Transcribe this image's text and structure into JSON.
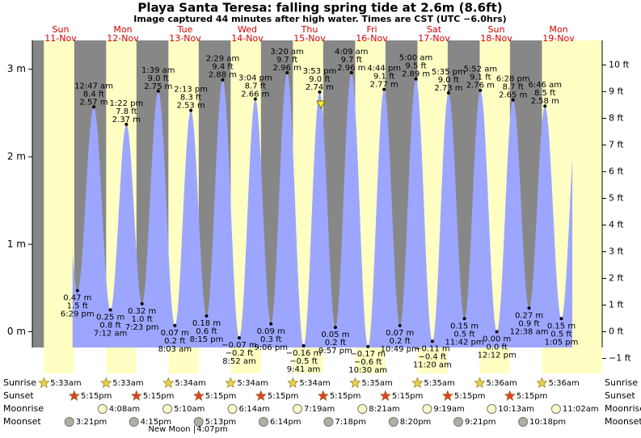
{
  "chart_data": {
    "type": "tide",
    "title": "Playa Santa Teresa: falling  spring tide at 2.6m (8.6ft)",
    "subtitle": "Image captured 44 minutes after high water. Times are CST (UTC −6.0hrs)",
    "ylim": [
      -0.18,
      3.33
    ],
    "yticks": [
      {
        "value": 0,
        "label": "0 m"
      },
      {
        "value": 1,
        "label": "1 m"
      },
      {
        "value": 2,
        "label": "2 m"
      },
      {
        "value": 3,
        "label": "3 m"
      }
    ],
    "y2lim": [
      -0.59,
      10.92
    ],
    "y2ticks": [
      {
        "value": -1,
        "label": "−1 ft"
      },
      {
        "value": 0,
        "label": "0 ft"
      },
      {
        "value": 1,
        "label": "1 ft"
      },
      {
        "value": 2,
        "label": "2 ft"
      },
      {
        "value": 3,
        "label": "3 ft"
      },
      {
        "value": 4,
        "label": "4 ft"
      },
      {
        "value": 5,
        "label": "5 ft"
      },
      {
        "value": 6,
        "label": "6 ft"
      },
      {
        "value": 7,
        "label": "7 ft"
      },
      {
        "value": 8,
        "label": "8 ft"
      },
      {
        "value": 9,
        "label": "9 ft"
      },
      {
        "value": 10,
        "label": "10 ft"
      }
    ],
    "row_labels": [
      "Sunrise",
      "Sunset",
      "Moonrise",
      "Moonset"
    ],
    "colors": {
      "water": "#9da6ff",
      "night": "#878787",
      "day": "#ffffc4",
      "weekday": "#d40000"
    },
    "days": [
      {
        "weekday": "Sun",
        "date": "11-Nov",
        "sunrise": "5:33am",
        "sunset": "5:15pm",
        "moonrise": null,
        "moonset": "3:21pm",
        "extremes": [
          {
            "time": "6:29 pm",
            "m": 0.47,
            "m_label": "0.47 m",
            "ft": 1.5,
            "ft_label": "1.5 ft"
          }
        ]
      },
      {
        "weekday": "Mon",
        "date": "12-Nov",
        "sunrise": "5:33am",
        "sunset": "5:15pm",
        "moonrise": "4:08am",
        "moonset": "4:15pm",
        "extremes": [
          {
            "time": "12:47 am",
            "m": 2.57,
            "m_label": "2.57 m",
            "ft": 8.4,
            "ft_label": "8.4 ft"
          },
          {
            "time": "7:12 am",
            "m": 0.25,
            "m_label": "0.25 m",
            "ft": 0.8,
            "ft_label": "0.8 ft"
          },
          {
            "time": "1:22 pm",
            "m": 2.37,
            "m_label": "2.37 m",
            "ft": 7.8,
            "ft_label": "7.8 ft"
          },
          {
            "time": "7:23 pm",
            "m": 0.32,
            "m_label": "0.32 m",
            "ft": 1.0,
            "ft_label": "1.0 ft"
          }
        ]
      },
      {
        "weekday": "Tue",
        "date": "13-Nov",
        "sunrise": "5:34am",
        "sunset": "5:15pm",
        "moonrise": "5:10am",
        "moonset": "5:13pm",
        "moon_phase": "New Moon |",
        "moon_phase_time": "4:07pm",
        "extremes": [
          {
            "time": "1:39 am",
            "m": 2.75,
            "m_label": "2.75 m",
            "ft": 9.0,
            "ft_label": "9.0 ft"
          },
          {
            "time": "8:03 am",
            "m": 0.07,
            "m_label": "0.07 m",
            "ft": 0.2,
            "ft_label": "0.2 ft"
          },
          {
            "time": "2:13 pm",
            "m": 2.53,
            "m_label": "2.53 m",
            "ft": 8.3,
            "ft_label": "8.3 ft"
          },
          {
            "time": "8:15 pm",
            "m": 0.18,
            "m_label": "0.18 m",
            "ft": 0.6,
            "ft_label": "0.6 ft"
          }
        ]
      },
      {
        "weekday": "Wed",
        "date": "14-Nov",
        "sunrise": "5:34am",
        "sunset": "5:15pm",
        "moonrise": "6:14am",
        "moonset": "6:14pm",
        "extremes": [
          {
            "time": "2:29 am",
            "m": 2.88,
            "m_label": "2.88 m",
            "ft": 9.4,
            "ft_label": "9.4 ft"
          },
          {
            "time": "8:52 am",
            "m": -0.07,
            "m_label": "−0.07 m",
            "ft": -0.2,
            "ft_label": "−0.2 ft"
          },
          {
            "time": "3:04 pm",
            "m": 2.66,
            "m_label": "2.66 m",
            "ft": 8.7,
            "ft_label": "8.7 ft"
          },
          {
            "time": "9:06 pm",
            "m": 0.09,
            "m_label": "0.09 m",
            "ft": 0.3,
            "ft_label": "0.3 ft"
          }
        ]
      },
      {
        "weekday": "Thu",
        "date": "15-Nov",
        "sunrise": "5:34am",
        "sunset": "5:15pm",
        "moonrise": "7:19am",
        "moonset": "7:18pm",
        "extremes": [
          {
            "time": "3:20 am",
            "m": 2.96,
            "m_label": "2.96 m",
            "ft": 9.7,
            "ft_label": "9.7 ft"
          },
          {
            "time": "9:41 am",
            "m": -0.16,
            "m_label": "−0.16 m",
            "ft": -0.5,
            "ft_label": "−0.5 ft"
          },
          {
            "time": "3:53 pm",
            "m": 2.74,
            "m_label": "2.74 m",
            "ft": 9.0,
            "ft_label": "9.0 ft"
          },
          {
            "time": "9:57 pm",
            "m": 0.05,
            "m_label": "0.05 m",
            "ft": 0.2,
            "ft_label": "0.2 ft"
          }
        ]
      },
      {
        "weekday": "Fri",
        "date": "16-Nov",
        "sunrise": "5:35am",
        "sunset": "5:15pm",
        "moonrise": "8:21am",
        "moonset": "8:20pm",
        "extremes": [
          {
            "time": "4:09 am",
            "m": 2.96,
            "m_label": "2.96 m",
            "ft": 9.7,
            "ft_label": "9.7 ft"
          },
          {
            "time": "10:30 am",
            "m": -0.17,
            "m_label": "−0.17 m",
            "ft": -0.6,
            "ft_label": "−0.6 ft"
          },
          {
            "time": "4:44 pm",
            "m": 2.77,
            "m_label": "2.77 m",
            "ft": 9.1,
            "ft_label": "9.1 ft"
          },
          {
            "time": "10:49 pm",
            "m": 0.07,
            "m_label": "0.07 m",
            "ft": 0.2,
            "ft_label": "0.2 ft"
          }
        ]
      },
      {
        "weekday": "Sat",
        "date": "17-Nov",
        "sunrise": "5:35am",
        "sunset": "5:15pm",
        "moonrise": "9:19am",
        "moonset": "9:21pm",
        "extremes": [
          {
            "time": "5:00 am",
            "m": 2.89,
            "m_label": "2.89 m",
            "ft": 9.5,
            "ft_label": "9.5 ft"
          },
          {
            "time": "11:20 am",
            "m": -0.11,
            "m_label": "−0.11 m",
            "ft": -0.4,
            "ft_label": "−0.4 ft"
          },
          {
            "time": "5:35 pm",
            "m": 2.73,
            "m_label": "2.73 m",
            "ft": 9.0,
            "ft_label": "9.0 ft"
          },
          {
            "time": "11:42 pm",
            "m": 0.15,
            "m_label": "0.15 m",
            "ft": 0.5,
            "ft_label": "0.5 ft"
          }
        ]
      },
      {
        "weekday": "Sun",
        "date": "18-Nov",
        "sunrise": "5:36am",
        "sunset": "5:15pm",
        "moonrise": "10:13am",
        "moonset": "10:18pm",
        "extremes": [
          {
            "time": "5:52 am",
            "m": 2.76,
            "m_label": "2.76 m",
            "ft": 9.1,
            "ft_label": "9.1 ft"
          },
          {
            "time": "12:12 pm",
            "m": 0.0,
            "m_label": "0.00 m",
            "ft": 0.0,
            "ft_label": "0.0 ft"
          },
          {
            "time": "6:28 pm",
            "m": 2.65,
            "m_label": "2.65 m",
            "ft": 8.7,
            "ft_label": "8.7 ft"
          }
        ]
      },
      {
        "weekday": "Mon",
        "date": "19-Nov",
        "sunrise": "5:36am",
        "sunset": null,
        "moonrise": "11:02am",
        "moonset": null,
        "extremes": [
          {
            "time": "12:38 am",
            "m": 0.27,
            "m_label": "0.27 m",
            "ft": 0.9,
            "ft_label": "0.9 ft"
          },
          {
            "time": "6:46 am",
            "m": 2.58,
            "m_label": "2.58 m",
            "ft": 8.5,
            "ft_label": "8.5 ft"
          },
          {
            "time": "1:05 pm",
            "m": 0.15,
            "m_label": "0.15 m",
            "ft": 0.5,
            "ft_label": "0.5 ft"
          }
        ]
      }
    ]
  }
}
